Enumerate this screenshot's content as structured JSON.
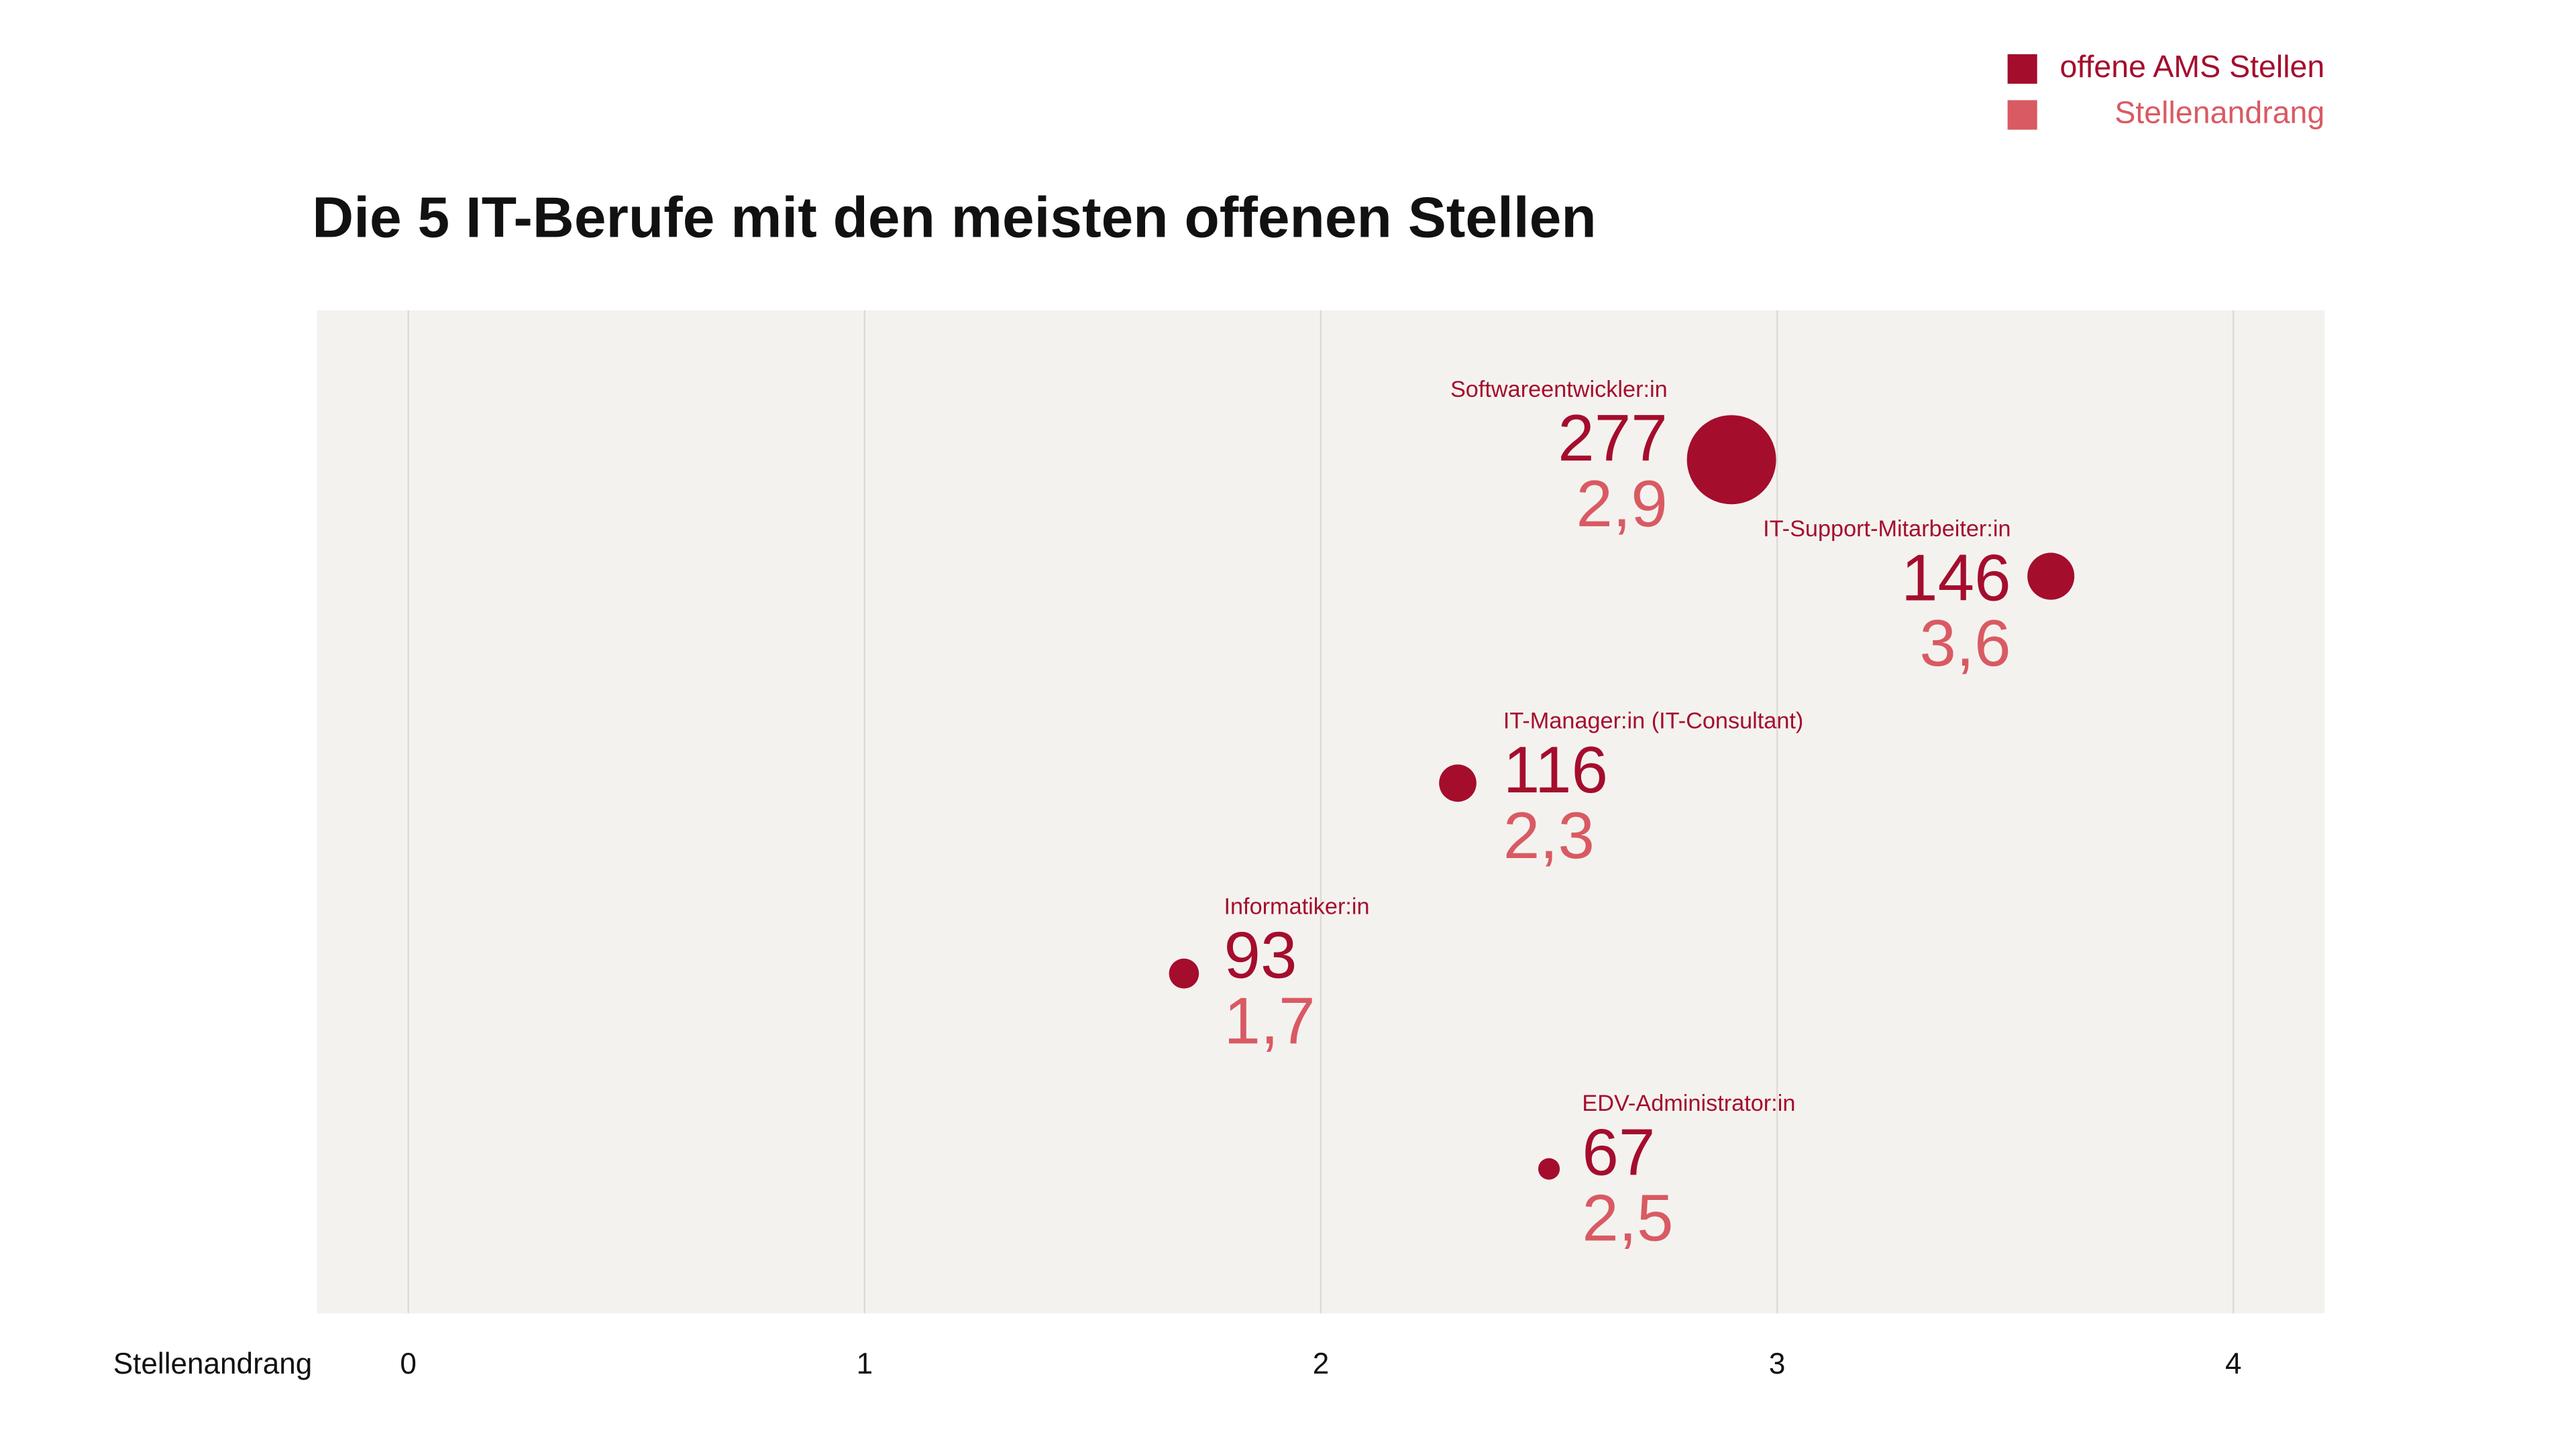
{
  "chart_data": {
    "type": "bubble",
    "title": "Die 5 IT-Berufe mit den meisten offenen Stellen",
    "xlabel": "Stellenandrang",
    "categories": [
      "Softwareentwickler:in",
      "IT-Support-Mitarbeiter:in",
      "IT-Manager:in (IT-Consultant)",
      "Informatiker:in",
      "EDV-Administrator:in"
    ],
    "series": [
      {
        "name": "offene AMS Stellen",
        "color": "#a50d2d",
        "values": [
          277,
          146,
          116,
          93,
          67
        ]
      },
      {
        "name": "Stellenandrang",
        "color": "#d95a63",
        "values": [
          2.9,
          3.6,
          2.3,
          1.7,
          2.5
        ],
        "value_labels": [
          "2,9",
          "3,6",
          "2,3",
          "1,7",
          "2,5"
        ]
      }
    ],
    "xlim": [
      -0.2,
      4.2
    ],
    "xticks": [
      0,
      1,
      2,
      3,
      4
    ],
    "grid": true,
    "legend": "top-right"
  }
}
